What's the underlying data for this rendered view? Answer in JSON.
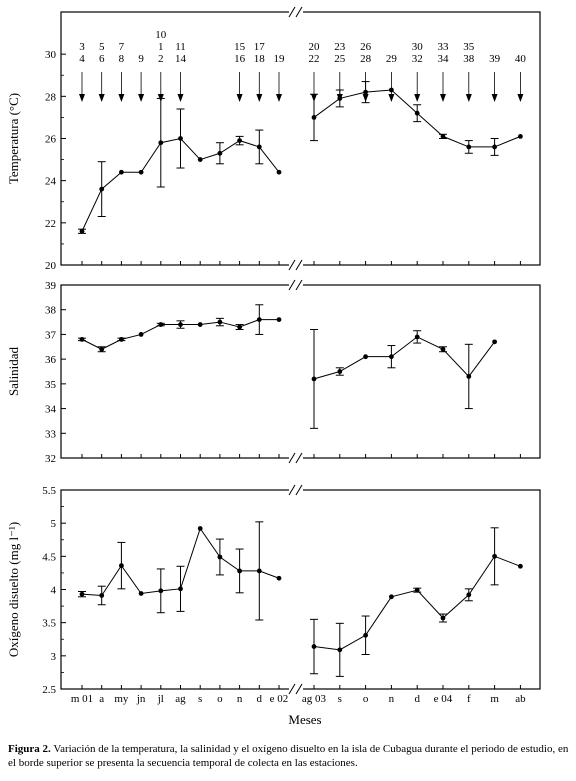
{
  "figure": {
    "caption_label": "Figura 2.",
    "caption_text": "Variación de la temperatura, la salinidad y el oxígeno disuelto en la isla de Cubagua durante el periodo de estudio, en el borde superior se presenta la secuencia temporal de colecta en las estaciones."
  },
  "chart_data": [
    {
      "type": "line",
      "panel": "temperature",
      "ylabel": "Temperatura (°C)",
      "xlabel": "",
      "ylim": [
        20,
        32
      ],
      "yticks": [
        20,
        22,
        24,
        26,
        28,
        30
      ],
      "broken_x_axis": true,
      "segments": [
        {
          "x": [
            0,
            1,
            2,
            3,
            4,
            5,
            6,
            7,
            8,
            9,
            10
          ],
          "y": [
            21.6,
            23.6,
            24.4,
            24.4,
            25.8,
            26.0,
            25.0,
            25.3,
            25.9,
            25.6,
            24.4
          ],
          "err": [
            0.1,
            1.3,
            0,
            0,
            2.1,
            1.4,
            0,
            0.5,
            0.2,
            0.8,
            0
          ]
        },
        {
          "x": [
            11.5,
            12.5,
            13.5,
            14.5,
            15.5,
            16.5,
            17.5,
            18.5,
            19.5
          ],
          "y": [
            27.0,
            27.9,
            28.2,
            28.3,
            27.2,
            26.1,
            25.6,
            25.6,
            26.1
          ],
          "err": [
            1.1,
            0.4,
            0.5,
            0,
            0.4,
            0.1,
            0.3,
            0.4,
            0
          ]
        }
      ],
      "station_markers": [
        {
          "x": 0,
          "labels": [
            "3",
            "4"
          ]
        },
        {
          "x": 1,
          "labels": [
            "5",
            "6"
          ]
        },
        {
          "x": 2,
          "labels": [
            "7",
            "8"
          ]
        },
        {
          "x": 3,
          "labels": [
            "9"
          ]
        },
        {
          "x": 4,
          "labels": [
            "10",
            "1",
            "2"
          ]
        },
        {
          "x": 5,
          "labels": [
            "11",
            "14"
          ]
        },
        {
          "x": 8,
          "labels": [
            "15",
            "16"
          ]
        },
        {
          "x": 9,
          "labels": [
            "17",
            "18"
          ]
        },
        {
          "x": 10,
          "labels": [
            "19"
          ]
        },
        {
          "x": 11.5,
          "labels": [
            "20",
            "22"
          ]
        },
        {
          "x": 12.5,
          "labels": [
            "23",
            "25"
          ]
        },
        {
          "x": 13.5,
          "labels": [
            "26",
            "28"
          ]
        },
        {
          "x": 14.5,
          "labels": [
            "29"
          ]
        },
        {
          "x": 15.5,
          "labels": [
            "30",
            "32"
          ]
        },
        {
          "x": 16.5,
          "labels": [
            "33",
            "34"
          ]
        },
        {
          "x": 17.5,
          "labels": [
            "35",
            "38"
          ]
        },
        {
          "x": 18.5,
          "labels": [
            "39"
          ]
        },
        {
          "x": 19.5,
          "labels": [
            "40"
          ]
        }
      ]
    },
    {
      "type": "line",
      "panel": "salinity",
      "ylabel": "Salinidad",
      "xlabel": "",
      "ylim": [
        32,
        39
      ],
      "yticks": [
        32,
        33,
        34,
        35,
        36,
        37,
        38,
        39
      ],
      "broken_x_axis": true,
      "segments": [
        {
          "x": [
            0,
            1,
            2,
            3,
            4,
            5,
            6,
            7,
            8,
            9,
            10
          ],
          "y": [
            36.8,
            36.4,
            36.8,
            37.0,
            37.4,
            37.4,
            37.4,
            37.5,
            37.3,
            37.6,
            37.6
          ],
          "err": [
            0.05,
            0.1,
            0.05,
            0,
            0.05,
            0.15,
            0,
            0.15,
            0.1,
            0.6,
            0
          ]
        },
        {
          "x": [
            11.5,
            12.5,
            13.5,
            14.5,
            15.5,
            16.5,
            17.5,
            18.5
          ],
          "y": [
            35.2,
            35.5,
            36.1,
            36.1,
            36.9,
            36.4,
            35.3,
            36.7
          ],
          "err": [
            2.0,
            0.15,
            0,
            0.45,
            0.25,
            0.1,
            1.3,
            0
          ]
        }
      ]
    },
    {
      "type": "line",
      "panel": "oxygen",
      "ylabel": "Oxígeno disuelto (mg l⁻¹)",
      "xlabel": "Meses",
      "ylim": [
        2.5,
        5.5
      ],
      "yticks": [
        2.5,
        3.0,
        3.5,
        4.0,
        4.5,
        5.0,
        5.5
      ],
      "broken_x_axis": true,
      "categories": [
        "m 01",
        "a",
        "my",
        "jn",
        "jl",
        "ag",
        "s",
        "o",
        "n",
        "d",
        "e 02",
        "ag 03",
        "s",
        "o",
        "n",
        "d",
        "e 04",
        "f",
        "m",
        "ab"
      ],
      "category_x": [
        0,
        1,
        2,
        3,
        4,
        5,
        6,
        7,
        8,
        9,
        10,
        11.5,
        12.5,
        13.5,
        14.5,
        15.5,
        16.5,
        17.5,
        18.5,
        19.5
      ],
      "segments": [
        {
          "x": [
            0,
            1,
            2,
            3,
            4,
            5,
            6,
            7,
            8,
            9,
            10
          ],
          "y": [
            3.93,
            3.91,
            4.36,
            3.94,
            3.98,
            4.01,
            4.92,
            4.49,
            4.28,
            4.28,
            4.17
          ],
          "err": [
            0.04,
            0.14,
            0.35,
            0,
            0.33,
            0.34,
            0,
            0.27,
            0.33,
            0.74,
            0
          ]
        },
        {
          "x": [
            11.5,
            12.5,
            13.5,
            14.5,
            15.5,
            16.5,
            17.5,
            18.5,
            19.5
          ],
          "y": [
            3.14,
            3.09,
            3.31,
            3.89,
            3.99,
            3.57,
            3.92,
            4.5,
            4.35
          ],
          "err": [
            0.41,
            0.4,
            0.29,
            0,
            0.03,
            0.06,
            0.09,
            0.43,
            0
          ]
        }
      ]
    }
  ]
}
